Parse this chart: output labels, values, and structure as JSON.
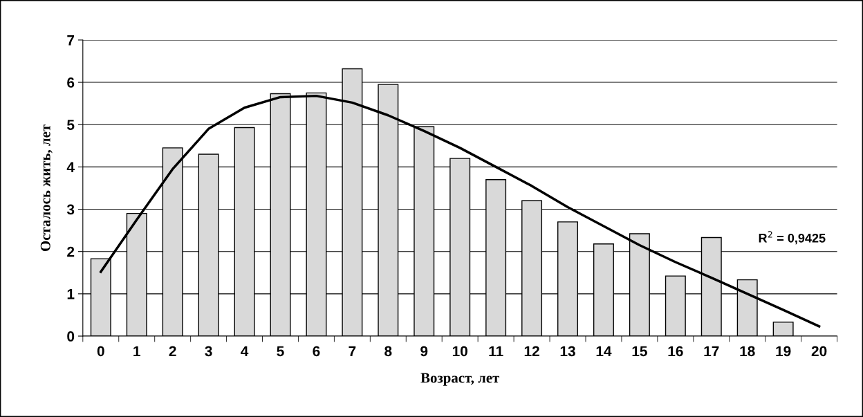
{
  "chart_data": {
    "type": "bar",
    "xlabel": "Возраст, лет",
    "ylabel": "Осталось жить, лет",
    "categories": [
      "0",
      "1",
      "2",
      "3",
      "4",
      "5",
      "6",
      "7",
      "8",
      "9",
      "10",
      "11",
      "12",
      "13",
      "14",
      "15",
      "16",
      "17",
      "18",
      "19",
      "20"
    ],
    "series": [
      {
        "color": "#d9d9d9",
        "values": [
          1.83,
          2.9,
          4.45,
          4.3,
          4.93,
          5.73,
          5.75,
          6.32,
          5.95,
          4.95,
          4.2,
          3.7,
          3.2,
          2.7,
          2.18,
          2.42,
          1.42,
          2.33,
          1.33,
          0.33,
          null
        ]
      },
      {
        "type": "line",
        "color": "#000000",
        "values": [
          1.52,
          2.75,
          3.95,
          4.9,
          5.4,
          5.65,
          5.68,
          5.52,
          5.22,
          4.85,
          4.45,
          4.0,
          3.55,
          3.05,
          2.6,
          2.15,
          1.75,
          1.38,
          1.0,
          0.62,
          0.23
        ]
      }
    ],
    "ylim": [
      0,
      7
    ],
    "yticks": [
      0,
      1,
      2,
      3,
      4,
      5,
      6,
      7
    ],
    "grid": "y",
    "legend": false,
    "marker": "none",
    "line_style": "solid",
    "annotations": [
      "R$^{2}$ = 0,9425"
    ]
  }
}
